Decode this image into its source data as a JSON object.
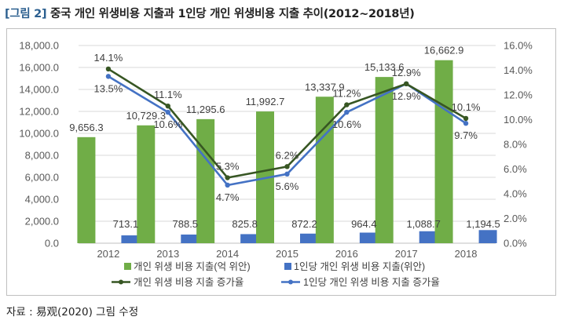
{
  "title": {
    "tag": "[그림 2]",
    "text": "중국 개인 위생비용 지출과 1인당 개인 위생비용 지출 추이(2012~2018년)"
  },
  "source": "자료 : 易观(2020) 그림 수정",
  "colors": {
    "bar_total": "#70ad47",
    "bar_per_capita": "#4472c4",
    "line_total_growth": "#375623",
    "line_per_capita_growth": "#4472c4"
  },
  "chart_data": {
    "type": "bar",
    "categories": [
      "2012",
      "2013",
      "2014",
      "2015",
      "2016",
      "2017",
      "2018"
    ],
    "ylim": [
      0,
      18000
    ],
    "y_ticks": [
      "0.0",
      "2,000.0",
      "4,000.0",
      "6,000.0",
      "8,000.0",
      "10,000.0",
      "12,000.0",
      "14,000.0",
      "16,000.0",
      "18,000.0"
    ],
    "y2lim": [
      0,
      16
    ],
    "y2_ticks": [
      "0.0%",
      "2.0%",
      "4.0%",
      "6.0%",
      "8.0%",
      "10.0%",
      "12.0%",
      "14.0%",
      "16.0%"
    ],
    "grid": true,
    "legend_position": "bottom",
    "series": [
      {
        "name": "개인 위생 비용 지출(억 위안)",
        "type": "bar",
        "axis": "left",
        "values": [
          9656.3,
          10729.3,
          11295.6,
          11992.7,
          13337.9,
          15133.6,
          16662.9
        ],
        "labels": [
          "9,656.3",
          "10,729.3",
          "11,295.6",
          "11,992.7",
          "13,337.9",
          "15,133.6",
          "16,662.9"
        ]
      },
      {
        "name": "1인당 개인 위생 비용 지출(위안)",
        "type": "bar",
        "axis": "left",
        "values": [
          713.1,
          788.5,
          825.8,
          872.2,
          964.4,
          1088.7,
          1194.5
        ],
        "labels": [
          "713.1",
          "788.5",
          "825.8",
          "872.2",
          "964.4",
          "1,088.7",
          "1,194.5"
        ]
      },
      {
        "name": "개인 위생 비용 지출 증가율",
        "type": "line",
        "axis": "right",
        "values": [
          14.1,
          11.1,
          5.3,
          6.2,
          11.2,
          12.9,
          10.1
        ],
        "labels": [
          "14.1%",
          "11.1%",
          "5.3%",
          "6.2%",
          "11.2%",
          "12.9%",
          "10.1%"
        ]
      },
      {
        "name": "1인당 개인 위생 비용 지출 증가율",
        "type": "line",
        "axis": "right",
        "values": [
          13.5,
          10.6,
          4.7,
          5.6,
          10.6,
          12.9,
          9.7
        ],
        "labels": [
          "13.5%",
          "10.6%",
          "4.7%",
          "5.6%",
          "10.6%",
          "12.9%",
          "9.7%"
        ]
      }
    ]
  }
}
